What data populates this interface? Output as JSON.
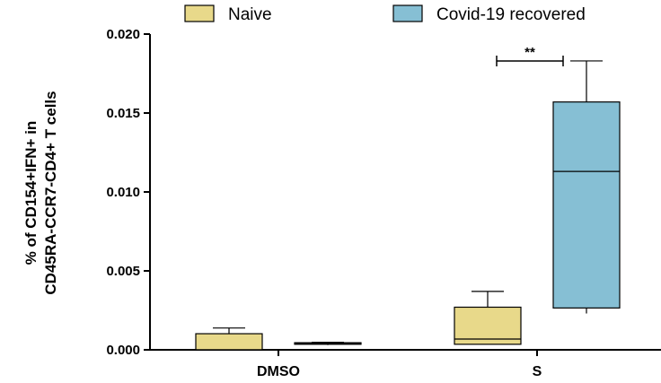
{
  "chart_data": {
    "type": "box",
    "categories": [
      "DMSO",
      "S"
    ],
    "ylabel_lines": [
      "% of CD154+IFN+ in",
      "CD45RA-CCR7-CD4+ T cells"
    ],
    "ylim": [
      0,
      0.02
    ],
    "yticks": [
      "0.000",
      "0.005",
      "0.010",
      "0.015",
      "0.020"
    ],
    "ytick_values": [
      0,
      0.005,
      0.01,
      0.015,
      0.02
    ],
    "legend_position": "top",
    "series": [
      {
        "name": "Naive",
        "color": "#e8d98a",
        "boxes": [
          {
            "category": "DMSO",
            "min": 0.0,
            "q1": 0.0,
            "median": 0.0,
            "q3": 0.00102,
            "max": 0.00138
          },
          {
            "category": "S",
            "min": 0.00035,
            "q1": 0.00035,
            "median": 0.00068,
            "q3": 0.0027,
            "max": 0.0037
          }
        ]
      },
      {
        "name": "Covid-19 recovered",
        "color": "#86bfd4",
        "boxes": [
          {
            "category": "DMSO",
            "min": 0.0003,
            "q1": 0.00035,
            "median": 0.0004,
            "q3": 0.00045,
            "max": 0.00048
          },
          {
            "category": "S",
            "min": 0.0023,
            "q1": 0.00265,
            "median": 0.0113,
            "q3": 0.0157,
            "max": 0.0183
          }
        ]
      }
    ],
    "annotations": [
      {
        "text": "**",
        "category": "S",
        "y": 0.0184
      }
    ]
  }
}
